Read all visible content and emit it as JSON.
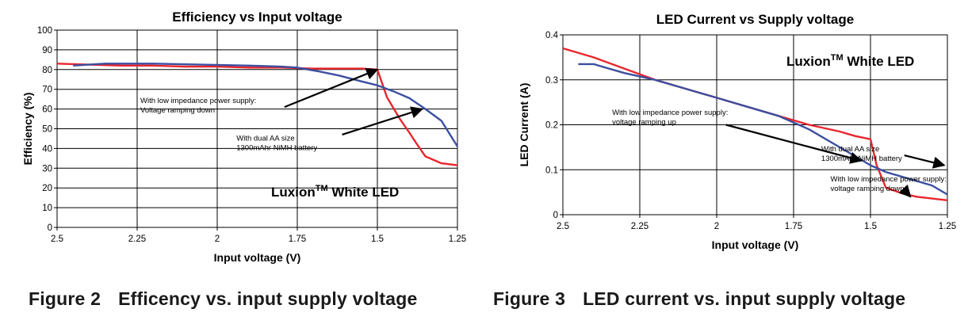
{
  "chart_data": [
    {
      "type": "line",
      "title": "Efficiency vs Input voltage",
      "xlabel": "Input voltage (V)",
      "ylabel": "Efficiency (%)",
      "x_reversed": true,
      "xlim": [
        1.25,
        2.5
      ],
      "ylim": [
        0,
        100
      ],
      "x_ticks": [
        2.5,
        2.25,
        2,
        1.75,
        1.5,
        1.25
      ],
      "x_tick_labels": [
        "2.5",
        "2.25",
        "2",
        "1.75",
        "1.5",
        "1.25"
      ],
      "y_ticks": [
        0,
        10,
        20,
        30,
        40,
        50,
        60,
        70,
        80,
        90,
        100
      ],
      "y_tick_labels": [
        "0",
        "10",
        "20",
        "30",
        "40",
        "50",
        "60",
        "70",
        "80",
        "90",
        "100"
      ],
      "grid": true,
      "legend_text": {
        "main": "Luxion",
        "sup": "TM",
        "rest": " White LED"
      },
      "series": [
        {
          "color": "#e8262d",
          "points": [
            [
              2.5,
              83
            ],
            [
              2.4,
              82.5
            ],
            [
              2.3,
              82
            ],
            [
              2.2,
              82
            ],
            [
              2.1,
              81.5
            ],
            [
              2.0,
              81.5
            ],
            [
              1.9,
              81
            ],
            [
              1.8,
              81
            ],
            [
              1.7,
              80.5
            ],
            [
              1.6,
              80.5
            ],
            [
              1.55,
              80.5
            ],
            [
              1.5,
              80
            ],
            [
              1.47,
              66
            ],
            [
              1.43,
              55
            ],
            [
              1.4,
              48
            ],
            [
              1.38,
              43
            ],
            [
              1.35,
              36
            ],
            [
              1.3,
              32.5
            ],
            [
              1.25,
              31.5
            ]
          ]
        },
        {
          "color": "#3c4fa0",
          "points": [
            [
              2.45,
              82
            ],
            [
              2.35,
              83
            ],
            [
              2.2,
              83
            ],
            [
              2.05,
              82.5
            ],
            [
              1.9,
              82
            ],
            [
              1.8,
              81.5
            ],
            [
              1.75,
              81
            ],
            [
              1.68,
              79
            ],
            [
              1.62,
              77
            ],
            [
              1.55,
              74
            ],
            [
              1.5,
              72
            ],
            [
              1.45,
              69
            ],
            [
              1.4,
              65.5
            ],
            [
              1.35,
              60
            ],
            [
              1.3,
              54
            ],
            [
              1.25,
              41
            ]
          ]
        }
      ],
      "annotations": [
        {
          "lines": [
            "With low impedance power supply:",
            "Voltage ramping down"
          ],
          "text_x": 2.24,
          "text_y": 63,
          "arrow_from": [
            1.79,
            61
          ],
          "arrow_to": [
            1.5,
            80
          ]
        },
        {
          "lines": [
            "With dual AA size",
            "1300mAhr NiMH battery"
          ],
          "text_x": 1.94,
          "text_y": 44,
          "arrow_from": [
            1.61,
            47
          ],
          "arrow_to": [
            1.36,
            60
          ]
        }
      ]
    },
    {
      "type": "line",
      "title": "LED Current vs Supply voltage",
      "xlabel": "Input voltage (V)",
      "ylabel": "LED Current (A)",
      "x_reversed": true,
      "xlim": [
        1.25,
        2.5
      ],
      "ylim": [
        0,
        0.4
      ],
      "x_ticks": [
        2.5,
        2.25,
        2,
        1.75,
        1.5,
        1.25
      ],
      "x_tick_labels": [
        "2.5",
        "2.25",
        "2",
        "1.75",
        "1.5",
        "1.25"
      ],
      "y_ticks": [
        0,
        0.1,
        0.2,
        0.3,
        0.4
      ],
      "y_tick_labels": [
        "0",
        "0.1",
        "0.2",
        "0.3",
        "0.4"
      ],
      "grid": true,
      "legend_text": {
        "main": "Luxion",
        "sup": "TM",
        "rest": " White LED"
      },
      "series": [
        {
          "color": "#e8262d",
          "points": [
            [
              2.5,
              0.37
            ],
            [
              2.4,
              0.35
            ],
            [
              2.3,
              0.325
            ],
            [
              2.2,
              0.3
            ],
            [
              2.1,
              0.28
            ],
            [
              2.0,
              0.26
            ],
            [
              1.9,
              0.24
            ],
            [
              1.8,
              0.22
            ],
            [
              1.7,
              0.2
            ],
            [
              1.6,
              0.185
            ],
            [
              1.55,
              0.175
            ],
            [
              1.5,
              0.168
            ],
            [
              1.48,
              0.11
            ],
            [
              1.45,
              0.06
            ],
            [
              1.4,
              0.048
            ],
            [
              1.35,
              0.04
            ],
            [
              1.3,
              0.036
            ],
            [
              1.25,
              0.032
            ]
          ]
        },
        {
          "color": "#3c4fa0",
          "points": [
            [
              2.45,
              0.335
            ],
            [
              2.4,
              0.335
            ],
            [
              2.35,
              0.325
            ],
            [
              2.3,
              0.315
            ],
            [
              2.2,
              0.3
            ],
            [
              2.1,
              0.28
            ],
            [
              2.0,
              0.26
            ],
            [
              1.9,
              0.24
            ],
            [
              1.8,
              0.22
            ],
            [
              1.7,
              0.19
            ],
            [
              1.6,
              0.15
            ],
            [
              1.5,
              0.11
            ],
            [
              1.45,
              0.095
            ],
            [
              1.4,
              0.085
            ],
            [
              1.3,
              0.065
            ],
            [
              1.25,
              0.045
            ]
          ]
        }
      ],
      "annotations": [
        {
          "lines": [
            "With low impedance power supply:",
            "voltage ramping up"
          ],
          "text_x": 2.34,
          "text_y": 0.222,
          "arrow_from": [
            1.97,
            0.2
          ],
          "arrow_to": [
            1.53,
            0.12
          ]
        },
        {
          "lines": [
            "With dual AA size",
            "1300mAhr NiMH battery"
          ],
          "text_x": 1.66,
          "text_y": 0.141,
          "arrow_from": [
            1.39,
            0.132
          ],
          "arrow_to": [
            1.26,
            0.11
          ]
        },
        {
          "lines": [
            "With low impedance power supply:",
            "voltage ramping down"
          ],
          "text_x": 1.63,
          "text_y": 0.074,
          "arrow_from": [
            1.39,
            0.055
          ],
          "arrow_to": [
            1.37,
            0.04
          ]
        }
      ]
    }
  ],
  "captions": [
    {
      "number": "Figure 2",
      "text": "Efficency vs. input supply voltage"
    },
    {
      "number": "Figure 3",
      "text": "LED current vs. input supply voltage"
    }
  ]
}
